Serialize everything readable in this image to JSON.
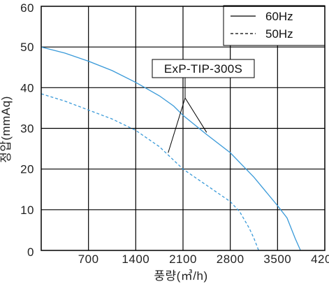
{
  "chart_data": {
    "type": "line",
    "title": "",
    "xlabel": "풍량(㎥/h)",
    "ylabel": "정압(mmAq)",
    "xlim": [
      0,
      4200
    ],
    "ylim": [
      0,
      60
    ],
    "x_ticks": [
      "0",
      "700",
      "1400",
      "2100",
      "2800",
      "3500",
      "4200"
    ],
    "y_ticks": [
      "0",
      "10",
      "20",
      "30",
      "40",
      "50",
      "60"
    ],
    "grid": true,
    "legend_position": "top-right",
    "series_color": "#3a9ad9",
    "series": [
      {
        "name": "60Hz",
        "style": "solid",
        "points": [
          [
            0,
            50
          ],
          [
            350,
            48.5
          ],
          [
            700,
            46.5
          ],
          [
            1050,
            44.2
          ],
          [
            1400,
            41.3
          ],
          [
            1750,
            38
          ],
          [
            1960,
            35.5
          ],
          [
            2100,
            33.2
          ],
          [
            2450,
            28.5
          ],
          [
            2800,
            24
          ],
          [
            3150,
            18
          ],
          [
            3500,
            11
          ],
          [
            3640,
            8
          ],
          [
            3760,
            3
          ],
          [
            3840,
            0
          ]
        ]
      },
      {
        "name": "50Hz",
        "style": "dashed",
        "points": [
          [
            0,
            38.5
          ],
          [
            350,
            36.7
          ],
          [
            700,
            34.5
          ],
          [
            1050,
            32.3
          ],
          [
            1400,
            29.5
          ],
          [
            1750,
            25.5
          ],
          [
            2100,
            20
          ],
          [
            2450,
            16
          ],
          [
            2800,
            12
          ],
          [
            2940,
            9.5
          ],
          [
            3080,
            5.5
          ],
          [
            3150,
            3
          ],
          [
            3220,
            0
          ]
        ]
      }
    ],
    "annotation": {
      "text": "ExP-TIP-300S",
      "targets": [
        [
          1880,
          24
        ],
        [
          2450,
          29
        ]
      ]
    }
  }
}
